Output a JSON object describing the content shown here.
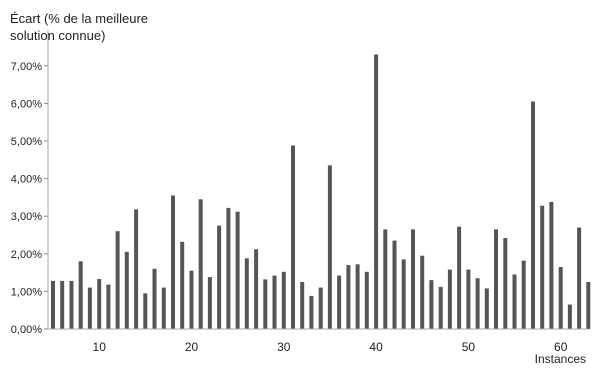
{
  "chart_data": {
    "type": "bar",
    "ylabel_lines": [
      "Écart (% de la meilleure",
      "solution connue)"
    ],
    "xlabel": "Instances",
    "ylim": [
      0,
      7.5
    ],
    "yticks": [
      "0,00%",
      "1,00%",
      "2,00%",
      "3,00%",
      "4,00%",
      "5,00%",
      "6,00%",
      "7,00%"
    ],
    "ytick_values": [
      0,
      1,
      2,
      3,
      4,
      5,
      6,
      7
    ],
    "xticks": [
      10,
      20,
      30,
      40,
      50,
      60
    ],
    "x": [
      5,
      6,
      7,
      8,
      9,
      10,
      11,
      12,
      13,
      14,
      15,
      16,
      17,
      18,
      19,
      20,
      21,
      22,
      23,
      24,
      25,
      26,
      27,
      28,
      29,
      30,
      31,
      32,
      33,
      34,
      35,
      36,
      37,
      38,
      39,
      40,
      41,
      42,
      43,
      44,
      45,
      46,
      47,
      48,
      49,
      50,
      51,
      52,
      53,
      54,
      55,
      56,
      57,
      58,
      59,
      60,
      61,
      62,
      63
    ],
    "values": [
      1.28,
      1.28,
      1.28,
      1.8,
      1.1,
      1.33,
      1.18,
      2.6,
      2.05,
      3.18,
      0.95,
      1.6,
      1.1,
      3.55,
      2.32,
      1.55,
      3.45,
      1.38,
      2.75,
      3.22,
      3.12,
      1.88,
      2.12,
      1.32,
      1.42,
      1.52,
      4.88,
      1.25,
      0.88,
      1.1,
      4.35,
      1.42,
      1.7,
      1.72,
      1.52,
      7.3,
      2.65,
      2.35,
      1.85,
      2.65,
      1.95,
      1.3,
      1.12,
      1.58,
      2.72,
      1.58,
      1.35,
      1.08,
      2.65,
      2.42,
      1.45,
      1.82,
      6.05,
      3.28,
      3.38,
      1.65,
      0.65,
      2.7,
      1.25
    ],
    "grid": false,
    "colors": {
      "bar": "#555555",
      "axis": "#aaaaaa",
      "tick": "#888888"
    }
  }
}
